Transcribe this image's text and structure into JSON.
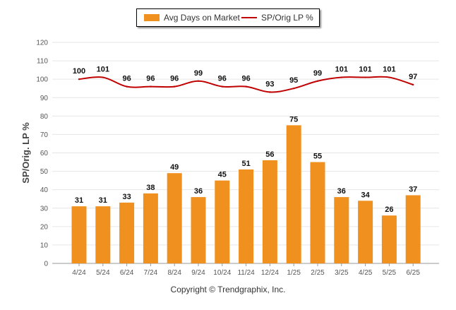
{
  "legend": {
    "bar_label": "Avg Days on Market",
    "line_label": "SP/Orig LP %"
  },
  "copyright": "Copyright © Trendgraphix, Inc.",
  "colors": {
    "bar": "#F0901E",
    "line": "#C00000",
    "grid": "#E6E6E6",
    "axis_text": "#555555"
  },
  "chart_data": {
    "type": "bar",
    "title": "",
    "xlabel": "",
    "ylabel": "SP/Orig. LP %",
    "ylim": [
      0,
      120
    ],
    "yticks": [
      0,
      10,
      20,
      30,
      40,
      50,
      60,
      70,
      80,
      90,
      100,
      110,
      120
    ],
    "grid": true,
    "legend_position": "top-center",
    "categories": [
      "4/24",
      "5/24",
      "6/24",
      "7/24",
      "8/24",
      "9/24",
      "10/24",
      "11/24",
      "12/24",
      "1/25",
      "2/25",
      "3/25",
      "4/25",
      "5/25",
      "6/25"
    ],
    "series": [
      {
        "name": "Avg Days on Market",
        "type": "bar",
        "values": [
          31,
          31,
          33,
          38,
          49,
          36,
          45,
          51,
          56,
          75,
          55,
          36,
          34,
          26,
          37
        ]
      },
      {
        "name": "SP/Orig LP %",
        "type": "line",
        "values": [
          100,
          101,
          96,
          96,
          96,
          99,
          96,
          96,
          93,
          95,
          99,
          101,
          101,
          101,
          97
        ]
      }
    ]
  }
}
